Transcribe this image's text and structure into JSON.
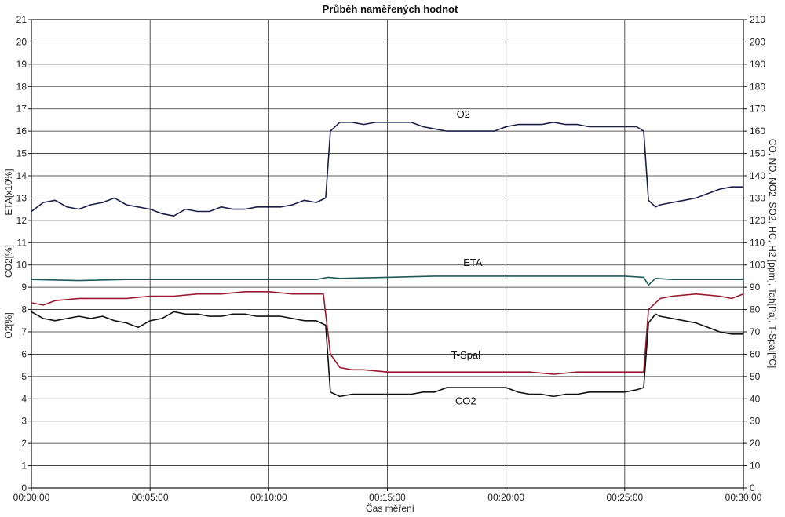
{
  "chart_data": {
    "type": "line",
    "title": "Průběh naměřených hodnot",
    "xlabel": "Čas měření",
    "ylabel_left": [
      "O2[%]",
      "CO2[%]",
      "ETA[x10%]"
    ],
    "ylabel_right": "CO, NO, NO2, SO2, HC, H2 [ppm], Tah[Pa], T-Spal[°C]",
    "x_ticks": [
      "00:00:00",
      "00:05:00",
      "00:10:00",
      "00:15:00",
      "00:20:00",
      "00:25:00",
      "00:30:00"
    ],
    "xlim_minutes": [
      0,
      30
    ],
    "ylim_left": [
      0,
      21
    ],
    "ylim_right": [
      0,
      210
    ],
    "y_ticks_left": [
      "0",
      "1",
      "2",
      "3",
      "4",
      "5",
      "6",
      "7",
      "8",
      "9",
      "10",
      "11",
      "12",
      "13",
      "14",
      "15",
      "16",
      "17",
      "18",
      "19",
      "20",
      "21"
    ],
    "y_ticks_right": [
      "0",
      "10",
      "20",
      "30",
      "40",
      "50",
      "60",
      "70",
      "80",
      "90",
      "100",
      "110",
      "120",
      "130",
      "140",
      "150",
      "160",
      "170",
      "180",
      "190",
      "200",
      "210"
    ],
    "grid": true,
    "series": [
      {
        "name": "O2",
        "axis": "left",
        "color": "#1a1f4a",
        "x": [
          0,
          0.5,
          1,
          1.5,
          2,
          2.5,
          3,
          3.5,
          4,
          4.5,
          5,
          5.5,
          6,
          6.5,
          7,
          7.5,
          8,
          8.5,
          9,
          9.5,
          10,
          10.5,
          11,
          11.5,
          12,
          12.4,
          12.6,
          13,
          13.5,
          14,
          14.5,
          15,
          15.5,
          16,
          16.5,
          17,
          17.5,
          18,
          18.5,
          19,
          19.5,
          20,
          20.5,
          21,
          21.5,
          22,
          22.5,
          23,
          23.5,
          24,
          24.5,
          25,
          25.5,
          25.8,
          26,
          26.3,
          26.5,
          27,
          27.5,
          28,
          28.5,
          29,
          29.5,
          30
        ],
        "values": [
          12.4,
          12.8,
          12.9,
          12.6,
          12.5,
          12.7,
          12.8,
          13.0,
          12.7,
          12.6,
          12.5,
          12.3,
          12.2,
          12.5,
          12.4,
          12.4,
          12.6,
          12.5,
          12.5,
          12.6,
          12.6,
          12.6,
          12.7,
          12.9,
          12.8,
          13.0,
          16.0,
          16.4,
          16.4,
          16.3,
          16.4,
          16.4,
          16.4,
          16.4,
          16.2,
          16.1,
          16.0,
          16.0,
          16.0,
          16.0,
          16.0,
          16.2,
          16.3,
          16.3,
          16.3,
          16.4,
          16.3,
          16.3,
          16.2,
          16.2,
          16.2,
          16.2,
          16.2,
          16.0,
          12.9,
          12.6,
          12.7,
          12.8,
          12.9,
          13.0,
          13.2,
          13.4,
          13.5,
          13.5
        ]
      },
      {
        "name": "ETA",
        "axis": "left",
        "color": "#1f5a5a",
        "x": [
          0,
          2,
          4,
          6,
          8,
          10,
          12,
          12.5,
          13,
          15,
          17,
          19,
          21,
          23,
          25,
          25.8,
          26,
          26.3,
          27,
          29,
          30
        ],
        "values": [
          9.35,
          9.3,
          9.35,
          9.35,
          9.35,
          9.35,
          9.35,
          9.45,
          9.4,
          9.45,
          9.5,
          9.5,
          9.5,
          9.5,
          9.5,
          9.45,
          9.1,
          9.4,
          9.35,
          9.35,
          9.35
        ]
      },
      {
        "name": "T-Spal",
        "axis": "right",
        "color": "#9a1830",
        "x": [
          0,
          0.5,
          1,
          2,
          3,
          4,
          5,
          6,
          7,
          8,
          9,
          10,
          11,
          12,
          12.3,
          12.6,
          13,
          13.5,
          14,
          15,
          16,
          17,
          18,
          19,
          20,
          21,
          22,
          23,
          24,
          25,
          25.8,
          26,
          26.5,
          27,
          28,
          29,
          29.5,
          30
        ],
        "values": [
          83,
          82,
          84,
          85,
          85,
          85,
          86,
          86,
          87,
          87,
          88,
          88,
          87,
          87,
          87,
          60,
          54,
          53,
          53,
          52,
          52,
          52,
          52,
          52,
          52,
          52,
          51,
          52,
          52,
          52,
          52,
          80,
          85,
          86,
          87,
          86,
          85,
          87
        ]
      },
      {
        "name": "CO2",
        "axis": "left",
        "color": "#111111",
        "x": [
          0,
          0.5,
          1,
          1.5,
          2,
          2.5,
          3,
          3.5,
          4,
          4.5,
          5,
          5.5,
          6,
          6.5,
          7,
          7.5,
          8,
          8.5,
          9,
          9.5,
          10,
          10.5,
          11,
          11.5,
          12,
          12.4,
          12.6,
          13,
          13.5,
          14,
          14.5,
          15,
          15.5,
          16,
          16.5,
          17,
          17.5,
          18,
          18.5,
          19,
          19.5,
          20,
          20.5,
          21,
          21.5,
          22,
          22.5,
          23,
          23.5,
          24,
          24.5,
          25,
          25.5,
          25.8,
          26,
          26.3,
          26.5,
          27,
          27.5,
          28,
          28.5,
          29,
          29.5,
          30
        ],
        "values": [
          7.9,
          7.6,
          7.5,
          7.6,
          7.7,
          7.6,
          7.7,
          7.5,
          7.4,
          7.2,
          7.5,
          7.6,
          7.9,
          7.8,
          7.8,
          7.7,
          7.7,
          7.8,
          7.8,
          7.7,
          7.7,
          7.7,
          7.6,
          7.5,
          7.5,
          7.3,
          4.3,
          4.1,
          4.2,
          4.2,
          4.2,
          4.2,
          4.2,
          4.2,
          4.3,
          4.3,
          4.5,
          4.5,
          4.5,
          4.5,
          4.5,
          4.5,
          4.3,
          4.2,
          4.2,
          4.1,
          4.2,
          4.2,
          4.3,
          4.3,
          4.3,
          4.3,
          4.4,
          4.5,
          7.4,
          7.8,
          7.7,
          7.6,
          7.5,
          7.4,
          7.2,
          7.0,
          6.9,
          6.9
        ]
      }
    ],
    "annotations": [
      {
        "text": "O2",
        "x": 18.2,
        "y": 16.6
      },
      {
        "text": "ETA",
        "x": 18.6,
        "y": 9.95
      },
      {
        "text": "T-Spal",
        "x": 18.3,
        "y": 5.8
      },
      {
        "text": "CO2",
        "x": 18.3,
        "y": 3.75
      }
    ]
  }
}
